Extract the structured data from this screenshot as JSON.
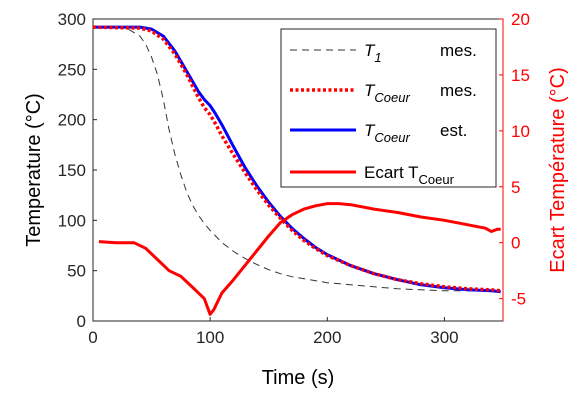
{
  "chart_data": {
    "type": "line",
    "xlabel": "Time (s)",
    "ylabel": "Temperature (°C)",
    "ylabel_right": "Ecart Température (°C)",
    "xlim": [
      0,
      350
    ],
    "ylim": [
      0,
      300
    ],
    "ylim_right": [
      -7,
      20
    ],
    "xticks": [
      0,
      100,
      200,
      300
    ],
    "yticks": [
      0,
      50,
      100,
      150,
      200,
      250,
      300
    ],
    "yticks_right": [
      -5,
      0,
      5,
      10,
      15,
      20
    ],
    "grid": false,
    "legend_position": "top-right",
    "series": [
      {
        "legend_main": "T",
        "legend_sub": "1",
        "legend_tail": "mes.",
        "axis": "left",
        "color": "#333333",
        "style": "dashed",
        "x": [
          0,
          20,
          30,
          40,
          45,
          50,
          55,
          60,
          65,
          70,
          75,
          80,
          85,
          90,
          95,
          100,
          110,
          120,
          130,
          140,
          150,
          160,
          170,
          180,
          190,
          200,
          220,
          240,
          260,
          280,
          300,
          320,
          340,
          348
        ],
        "y": [
          292,
          292,
          290,
          283,
          275,
          262,
          245,
          220,
          190,
          165,
          145,
          128,
          115,
          105,
          97,
          90,
          78,
          69,
          62,
          56,
          51,
          47,
          44,
          42,
          40,
          38,
          36,
          34,
          32,
          31,
          30,
          30,
          30,
          30
        ]
      },
      {
        "legend_main": "T",
        "legend_sub": "Coeur",
        "legend_tail": "mes.",
        "axis": "left",
        "color": "#ff0000",
        "style": "dotted",
        "x": [
          0,
          40,
          50,
          60,
          70,
          80,
          90,
          95,
          100,
          105,
          110,
          120,
          130,
          140,
          150,
          160,
          170,
          180,
          190,
          200,
          220,
          240,
          260,
          280,
          300,
          320,
          340,
          348
        ],
        "y": [
          292,
          291,
          288,
          280,
          265,
          245,
          222,
          212,
          205,
          195,
          184,
          165,
          147,
          130,
          115,
          102,
          90,
          80,
          72,
          65,
          55,
          47,
          41,
          37,
          34,
          32,
          31,
          30
        ]
      },
      {
        "legend_main": "T",
        "legend_sub": "Coeur",
        "legend_tail": "est.",
        "axis": "left",
        "color": "#0000ff",
        "style": "solid",
        "x": [
          0,
          40,
          50,
          60,
          70,
          80,
          90,
          95,
          100,
          105,
          110,
          120,
          130,
          140,
          150,
          160,
          170,
          180,
          190,
          200,
          220,
          240,
          260,
          280,
          300,
          320,
          340,
          348
        ],
        "y": [
          292,
          292,
          290,
          283,
          268,
          248,
          228,
          220,
          214,
          205,
          195,
          173,
          152,
          134,
          118,
          104,
          92,
          82,
          73,
          66,
          55,
          47,
          41,
          36,
          33,
          31,
          30,
          29
        ]
      },
      {
        "legend_main": "Ecart T",
        "legend_sub": "Coeur",
        "legend_tail": "",
        "axis": "right",
        "color": "#ff0000",
        "style": "solid",
        "x": [
          5,
          20,
          35,
          45,
          55,
          65,
          75,
          85,
          95,
          100,
          103,
          110,
          120,
          130,
          140,
          150,
          160,
          170,
          180,
          190,
          200,
          210,
          220,
          240,
          260,
          280,
          300,
          320,
          335,
          340,
          345,
          348
        ],
        "y": [
          0.1,
          0.0,
          0.0,
          -0.5,
          -1.5,
          -2.5,
          -3.0,
          -4.0,
          -5.0,
          -6.4,
          -6.0,
          -4.5,
          -3.3,
          -2.0,
          -0.7,
          0.6,
          1.8,
          2.5,
          3.0,
          3.3,
          3.5,
          3.5,
          3.4,
          3.0,
          2.7,
          2.3,
          2.0,
          1.6,
          1.3,
          1.0,
          1.2,
          1.2
        ]
      }
    ]
  }
}
